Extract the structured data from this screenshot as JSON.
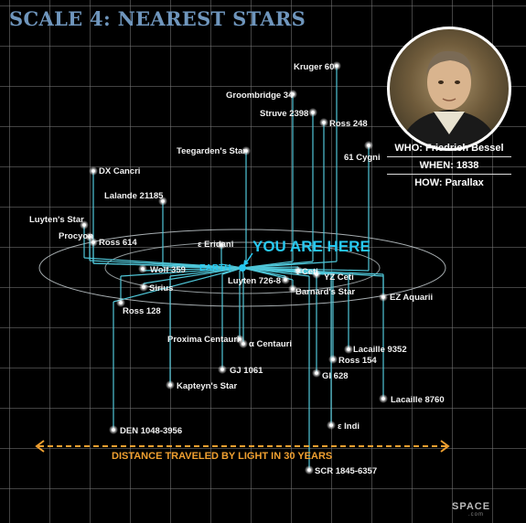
{
  "title": "SCALE 4: NEAREST STARS",
  "earth": {
    "label": "EARTH",
    "you_are_here": "YOU ARE HERE"
  },
  "distance_label": "DISTANCE TRAVELED BY LIGHT IN 30 YEARS",
  "info": {
    "who": "WHO: Friedrich Bessel",
    "when": "WHEN: 1838",
    "how": "HOW: Parallax"
  },
  "logo": {
    "text": "SPACE",
    "sub": ".com"
  },
  "stars": [
    {
      "id": "kruger-60",
      "label": "Kruger 60"
    },
    {
      "id": "groombridge-34",
      "label": "Groombridge 34"
    },
    {
      "id": "struve-2398",
      "label": "Struve 2398"
    },
    {
      "id": "ross-248",
      "label": "Ross 248"
    },
    {
      "id": "61-cygni",
      "label": "61 Cygni"
    },
    {
      "id": "teegardens-star",
      "label": "Teegarden's Star"
    },
    {
      "id": "dx-cancri",
      "label": "DX Cancri"
    },
    {
      "id": "lalande-21185",
      "label": "Lalande 21185"
    },
    {
      "id": "luytens-star",
      "label": "Luyten's Star"
    },
    {
      "id": "procyon",
      "label": "Procyon"
    },
    {
      "id": "ross-614",
      "label": "Ross 614"
    },
    {
      "id": "epsilon-eridani",
      "label": "ε Eridani"
    },
    {
      "id": "wolf-359",
      "label": "Wolf 359"
    },
    {
      "id": "sirius",
      "label": "Sirius"
    },
    {
      "id": "ross-128",
      "label": "Ross 128"
    },
    {
      "id": "tau-ceti",
      "label": "τ Ceti"
    },
    {
      "id": "yz-ceti",
      "label": "YZ Ceti"
    },
    {
      "id": "luyten-726-8",
      "label": "Luyten 726-8"
    },
    {
      "id": "barnards-star",
      "label": "Barnard's Star"
    },
    {
      "id": "ez-aquarii",
      "label": "EZ Aquarii"
    },
    {
      "id": "proxima-centauri",
      "label": "Proxima Centauri"
    },
    {
      "id": "alpha-centauri",
      "label": "α Centauri"
    },
    {
      "id": "lacaille-9352",
      "label": "Lacaille 9352"
    },
    {
      "id": "ross-154",
      "label": "Ross 154"
    },
    {
      "id": "gj-1061",
      "label": "GJ 1061"
    },
    {
      "id": "gl-628",
      "label": "Gl 628"
    },
    {
      "id": "kapteyns-star",
      "label": "Kapteyn's Star"
    },
    {
      "id": "lacaille-8760",
      "label": "Lacaille 8760"
    },
    {
      "id": "den-1048-3956",
      "label": "DEN 1048-3956"
    },
    {
      "id": "epsilon-indi",
      "label": "ε Indi"
    },
    {
      "id": "scr-1845-6357",
      "label": "SCR 1845-6357"
    }
  ],
  "colors": {
    "title": "#6f96bd",
    "lines": "#4fc6d8",
    "earth": "#27c8f0",
    "distance": "#f0a030"
  }
}
